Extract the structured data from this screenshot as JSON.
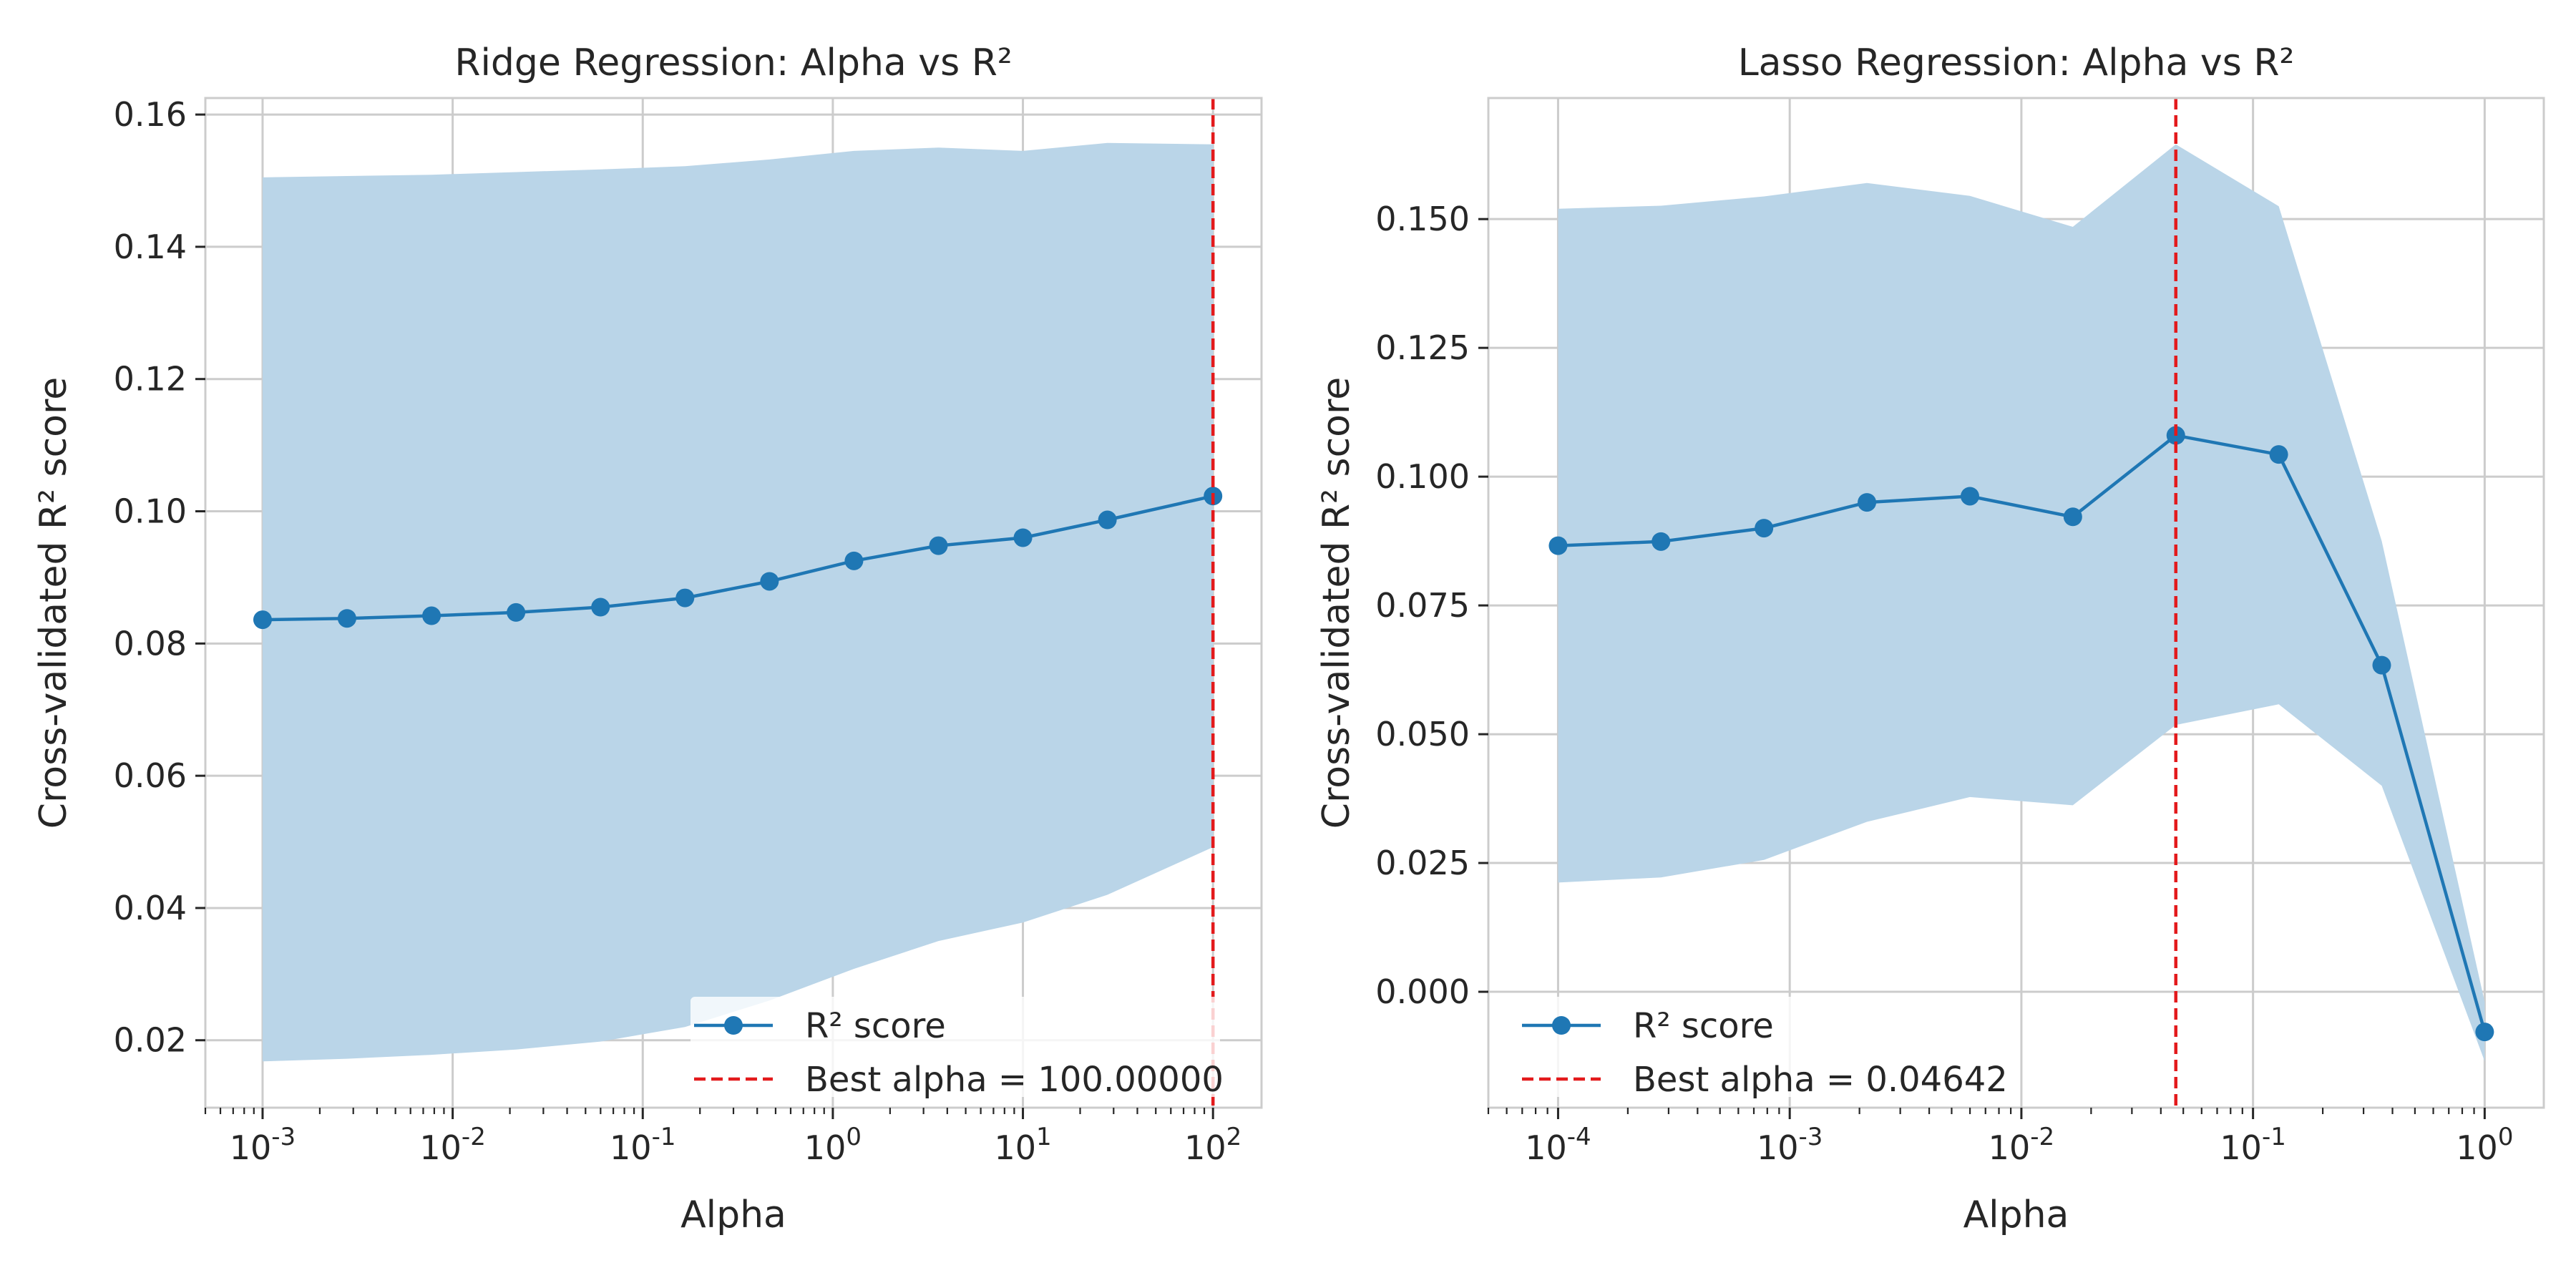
{
  "colors": {
    "line": "#1f77b4",
    "band": "#bad5e8",
    "best": "#e31a1c",
    "grid": "#cccccc",
    "spine": "#cccccc"
  },
  "chart_data": [
    {
      "type": "line",
      "title": "Ridge Regression: Alpha vs R²",
      "xlabel": "Alpha",
      "ylabel": "Cross-validated R² score",
      "xscale": "log",
      "xlim": [
        0.0005,
        180
      ],
      "ylim": [
        0.0098,
        0.1625
      ],
      "yticks": [
        0.02,
        0.04,
        0.06,
        0.08,
        0.1,
        0.12,
        0.14,
        0.16
      ],
      "ytick_labels": [
        "0.02",
        "0.04",
        "0.06",
        "0.08",
        "0.10",
        "0.12",
        "0.14",
        "0.16"
      ],
      "xtick_exponents": [
        "-3",
        "-2",
        "-1",
        "0",
        "1",
        "2"
      ],
      "grid": true,
      "legend_position": "lower right",
      "series": [
        {
          "name": "R² score",
          "x": [
            0.001,
            0.00278,
            0.00774,
            0.02154,
            0.05995,
            0.1668,
            0.4642,
            1.2915,
            3.5938,
            10.0,
            27.826,
            100.0
          ],
          "y": [
            0.0836,
            0.0838,
            0.0842,
            0.0847,
            0.0855,
            0.0869,
            0.0894,
            0.0925,
            0.0948,
            0.096,
            0.0987,
            0.1023
          ],
          "upper": [
            0.1505,
            0.1507,
            0.1509,
            0.1513,
            0.1517,
            0.1522,
            0.1532,
            0.1545,
            0.155,
            0.1545,
            0.1557,
            0.1555
          ],
          "lower": [
            0.0168,
            0.0172,
            0.0178,
            0.0186,
            0.0198,
            0.022,
            0.026,
            0.0308,
            0.035,
            0.0378,
            0.042,
            0.0492
          ]
        }
      ],
      "best_alpha": 100.0,
      "best_label": "Best alpha = 100.00000"
    },
    {
      "type": "line",
      "title": "Lasso Regression: Alpha vs R²",
      "xlabel": "Alpha",
      "ylabel": "Cross-validated R² score",
      "xscale": "log",
      "xlim": [
        5e-05,
        1.8
      ],
      "ylim": [
        -0.0225,
        0.1735
      ],
      "yticks": [
        0.0,
        0.025,
        0.05,
        0.075,
        0.1,
        0.125,
        0.15
      ],
      "ytick_labels": [
        "0.000",
        "0.025",
        "0.050",
        "0.075",
        "0.100",
        "0.125",
        "0.150"
      ],
      "xtick_exponents": [
        "-4",
        "-3",
        "-2",
        "-1",
        "0"
      ],
      "grid": true,
      "legend_position": "lower left",
      "series": [
        {
          "name": "R² score",
          "x": [
            0.0001,
            0.000278,
            0.000774,
            0.002154,
            0.005995,
            0.01668,
            0.04642,
            0.12915,
            0.35938,
            1.0
          ],
          "y": [
            0.0866,
            0.0874,
            0.09,
            0.095,
            0.0962,
            0.0922,
            0.108,
            0.1043,
            0.0634,
            -0.0078
          ],
          "upper": [
            0.152,
            0.1526,
            0.1544,
            0.157,
            0.1545,
            0.1485,
            0.1645,
            0.1525,
            0.0875,
            -0.002
          ],
          "lower": [
            0.0212,
            0.0222,
            0.0256,
            0.033,
            0.0378,
            0.0362,
            0.0518,
            0.0558,
            0.04,
            -0.0135
          ]
        }
      ],
      "best_alpha": 0.04642,
      "best_label": "Best alpha = 0.04642"
    }
  ]
}
